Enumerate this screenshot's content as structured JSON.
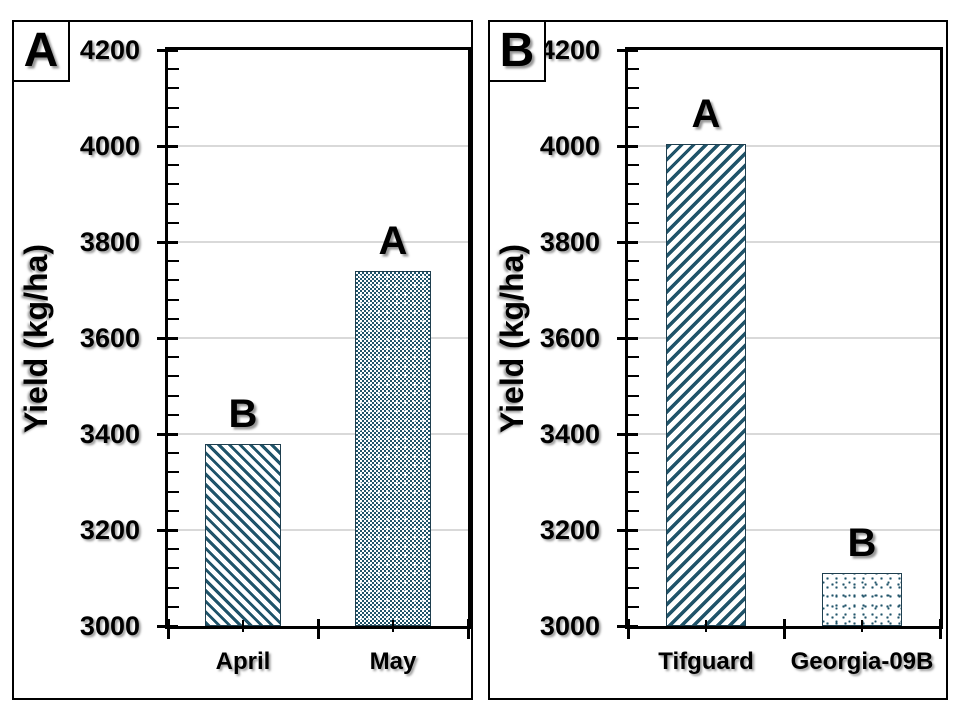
{
  "figure": {
    "ylabel": "Yield (kg/ha)"
  },
  "colors": {
    "bar_pattern": "#20546A",
    "bar_border": "#1F3F4F",
    "gridline": "#D9D9D9",
    "axis": "#000000",
    "background": "#FFFFFF"
  },
  "chart_data": [
    {
      "type": "bar",
      "panel_label": "A",
      "title": "",
      "xlabel": "",
      "ylabel": "Yield (kg/ha)",
      "categories": [
        "April",
        "May"
      ],
      "values": [
        3380,
        3740
      ],
      "sig_letters": [
        "B",
        "A"
      ],
      "patterns": [
        "diag-down",
        "checker"
      ],
      "ylim": [
        3000,
        4200
      ],
      "ytick_labels": [
        "4200",
        "4000",
        "3800",
        "3600",
        "3400",
        "3200",
        "3000"
      ],
      "ytick_interval": 200,
      "yminor_per_major": 4,
      "grid": true,
      "legend": "none"
    },
    {
      "type": "bar",
      "panel_label": "B",
      "title": "",
      "xlabel": "",
      "ylabel": "Yield (kg/ha)",
      "categories": [
        "Tifguard",
        "Georgia-09B"
      ],
      "values": [
        4005,
        3110
      ],
      "sig_letters": [
        "A",
        "B"
      ],
      "patterns": [
        "diag-up",
        "dots"
      ],
      "ylim": [
        3000,
        4200
      ],
      "ytick_labels": [
        "4200",
        "4000",
        "3800",
        "3600",
        "3400",
        "3200",
        "3000"
      ],
      "ytick_interval": 200,
      "yminor_per_major": 4,
      "grid": true,
      "legend": "none"
    }
  ]
}
